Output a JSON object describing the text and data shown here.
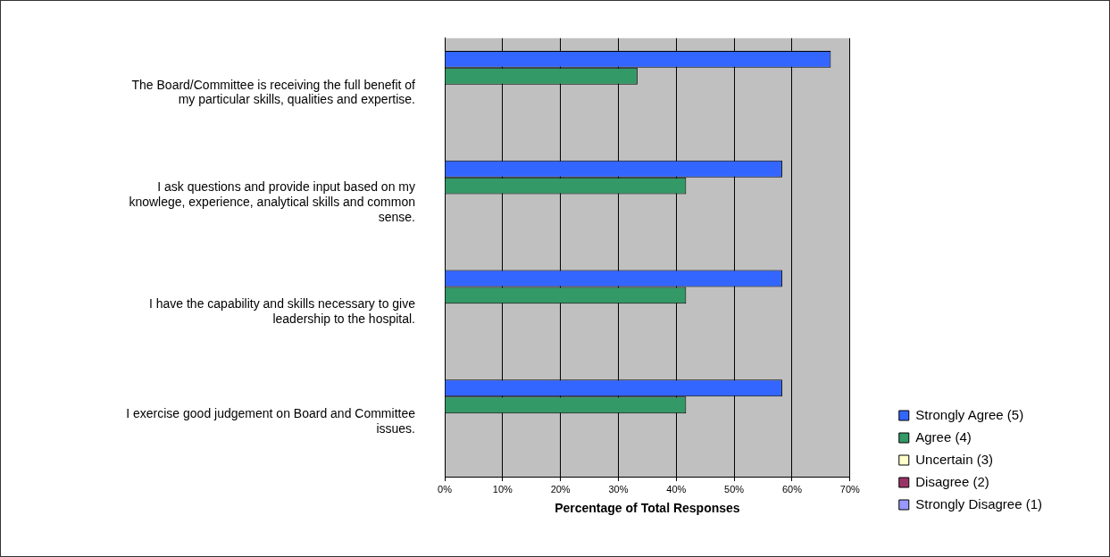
{
  "chart_data": {
    "type": "bar",
    "orientation": "horizontal",
    "xlabel": "Percentage of Total Responses",
    "categories": [
      "The Board/Committee is receiving the full benefit of my particular skills, qualities and expertise.",
      "I ask questions and provide input based on my knowlege, experience, analytical skills and common sense.",
      "I have the capability and skills necessary to give leadership to the hospital.",
      "I exercise good judgement on Board and Committee issues."
    ],
    "series": [
      {
        "name": "Strongly Agree (5)",
        "color": "#3366ff",
        "values": [
          66.7,
          58.3,
          58.3,
          58.3
        ]
      },
      {
        "name": "Agree (4)",
        "color": "#339966",
        "values": [
          33.3,
          41.7,
          41.7,
          41.7
        ]
      },
      {
        "name": "Uncertain (3)",
        "color": "#ffffcc",
        "values": [
          0,
          0,
          0,
          0
        ]
      },
      {
        "name": "Disagree (2)",
        "color": "#993366",
        "values": [
          0,
          0,
          0,
          0
        ]
      },
      {
        "name": "Strongly Disagree (1)",
        "color": "#9999ff",
        "values": [
          0,
          0,
          0,
          0
        ]
      }
    ],
    "xlim": [
      0,
      70
    ],
    "xticks": [
      {
        "value": 0,
        "label": "0%"
      },
      {
        "value": 10,
        "label": "10%"
      },
      {
        "value": 20,
        "label": "20%"
      },
      {
        "value": 30,
        "label": "30%"
      },
      {
        "value": 40,
        "label": "40%"
      },
      {
        "value": 50,
        "label": "50%"
      },
      {
        "value": 60,
        "label": "60%"
      },
      {
        "value": 70,
        "label": "70%"
      }
    ],
    "grid": "x",
    "legend": "right"
  }
}
